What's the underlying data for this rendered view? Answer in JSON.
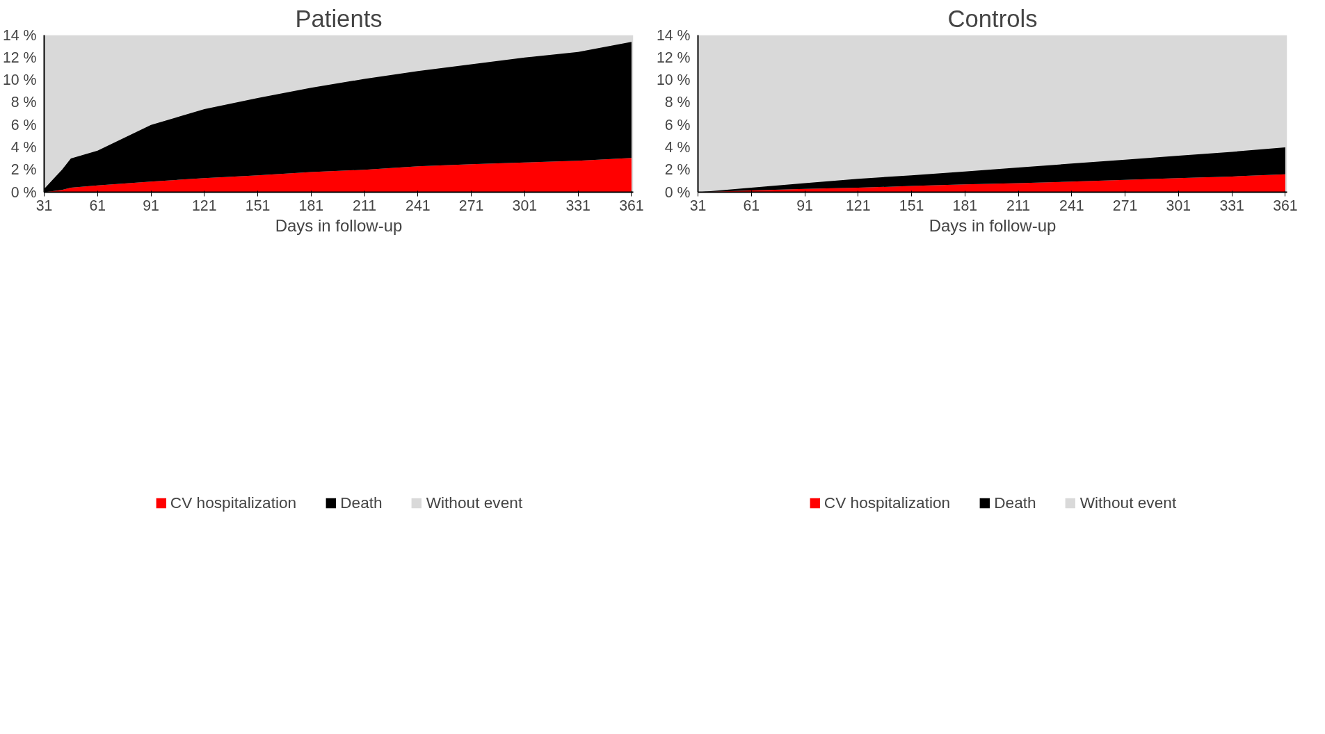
{
  "chart_data": [
    {
      "type": "area",
      "title": "Patients",
      "xlabel": "Days in follow-up",
      "stacked": true,
      "x": [
        31,
        41,
        46,
        61,
        91,
        121,
        151,
        181,
        211,
        241,
        271,
        301,
        331,
        361
      ],
      "series": [
        {
          "name": "CV hospitalization",
          "color": "#ff0000",
          "values": [
            0,
            0.2,
            0.4,
            0.6,
            0.95,
            1.25,
            1.5,
            1.8,
            2.0,
            2.3,
            2.5,
            2.65,
            2.8,
            3.05
          ]
        },
        {
          "name": "Death",
          "color": "#000000",
          "values": [
            0.3,
            1.8,
            2.6,
            3.1,
            5.05,
            6.15,
            6.9,
            7.5,
            8.1,
            8.5,
            8.9,
            9.35,
            9.7,
            10.35
          ]
        }
      ],
      "bands": [
        {
          "axis": "y",
          "from": 0,
          "to": 14,
          "label": "Without event",
          "color": "#d9d9d9"
        }
      ],
      "xlim": [
        31,
        362
      ],
      "xticks": [
        31,
        61,
        91,
        121,
        151,
        181,
        211,
        241,
        271,
        301,
        331,
        361
      ],
      "ylim": [
        0,
        14
      ],
      "yticks": [
        {
          "value": 0,
          "label": "0 %"
        },
        {
          "value": 2,
          "label": "2 %"
        },
        {
          "value": 4,
          "label": "4 %"
        },
        {
          "value": 6,
          "label": "6 %"
        },
        {
          "value": 8,
          "label": "8 %"
        },
        {
          "value": 10,
          "label": "10 %"
        },
        {
          "value": 12,
          "label": "12 %"
        },
        {
          "value": 14,
          "label": "14 %"
        }
      ],
      "legend": "bottom"
    },
    {
      "type": "area",
      "title": "Controls",
      "xlabel": "Days in follow-up",
      "stacked": true,
      "x": [
        31,
        61,
        91,
        121,
        151,
        181,
        211,
        241,
        271,
        301,
        331,
        361
      ],
      "series": [
        {
          "name": "CV hospitalization",
          "color": "#ff0000",
          "values": [
            0,
            0.15,
            0.3,
            0.4,
            0.55,
            0.7,
            0.8,
            0.95,
            1.1,
            1.25,
            1.4,
            1.6
          ]
        },
        {
          "name": "Death",
          "color": "#000000",
          "values": [
            0,
            0.25,
            0.5,
            0.8,
            0.95,
            1.15,
            1.4,
            1.6,
            1.8,
            2.0,
            2.2,
            2.4
          ]
        }
      ],
      "bands": [
        {
          "axis": "y",
          "from": 0,
          "to": 14,
          "label": "Without event",
          "color": "#d9d9d9"
        }
      ],
      "xlim": [
        31,
        362
      ],
      "xticks": [
        31,
        61,
        91,
        121,
        151,
        181,
        211,
        241,
        271,
        301,
        331,
        361
      ],
      "ylim": [
        0,
        14
      ],
      "yticks": [
        {
          "value": 0,
          "label": "0 %"
        },
        {
          "value": 2,
          "label": "2 %"
        },
        {
          "value": 4,
          "label": "4 %"
        },
        {
          "value": 6,
          "label": "6 %"
        },
        {
          "value": 8,
          "label": "8 %"
        },
        {
          "value": 10,
          "label": "10 %"
        },
        {
          "value": 12,
          "label": "12 %"
        },
        {
          "value": 14,
          "label": "14 %"
        }
      ],
      "legend": "bottom"
    }
  ]
}
